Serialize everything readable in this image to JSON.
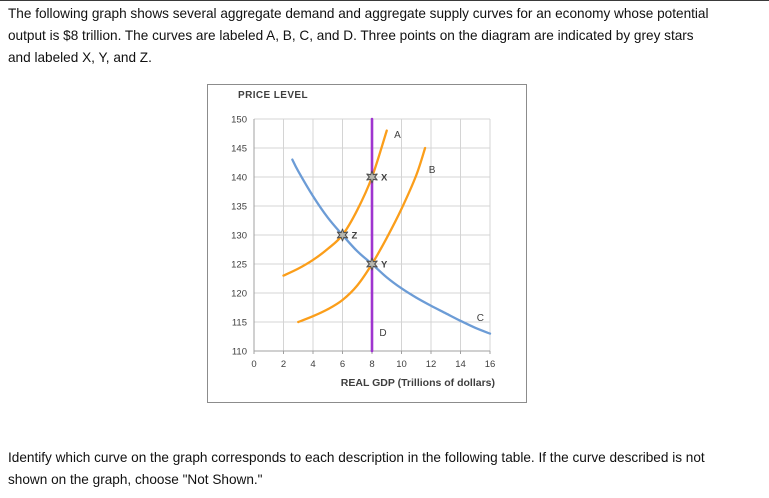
{
  "page": {
    "intro_lines": [
      "The following graph shows several aggregate demand and aggregate supply curves for an economy whose potential",
      "output is $8 trillion. The curves are labeled A, B, C, and D. Three points on the diagram are indicated by grey stars",
      "and labeled X, Y, and Z."
    ],
    "footer_lines": [
      "Identify which curve on the graph corresponds to each description in the following table. If the curve described is not",
      "shown on the graph, choose \"Not Shown.\""
    ]
  },
  "chart_data": {
    "type": "line",
    "title": "PRICE LEVEL",
    "xlabel": "REAL GDP (Trillions of dollars)",
    "ylabel": "PRICE LEVEL",
    "xlim": [
      0,
      16
    ],
    "ylim": [
      110,
      150
    ],
    "xticks": [
      0,
      2,
      4,
      6,
      8,
      10,
      12,
      14,
      16
    ],
    "yticks": [
      110,
      115,
      120,
      125,
      130,
      135,
      140,
      145,
      150
    ],
    "grid": true,
    "potential_output_trillions": 8,
    "colors": {
      "aggregate_supply": "#FB9E1A",
      "aggregate_demand": "#6C9CD6",
      "potential_output": "#9F35CF",
      "gridline": "#d4d4d4",
      "axis": "#a0a0a0",
      "star_fill": "#b5b5ad",
      "star_stroke": "#4f4f4f"
    },
    "series": [
      {
        "name": "A",
        "kind": "aggregate-supply",
        "color": "#FB9E1A",
        "points": [
          [
            2,
            123
          ],
          [
            3,
            124.2
          ],
          [
            4,
            125.7
          ],
          [
            5,
            127.6
          ],
          [
            6,
            130
          ],
          [
            7,
            134.3
          ],
          [
            8,
            140
          ],
          [
            9,
            148
          ]
        ],
        "label_pos": [
          9.5,
          147.3
        ]
      },
      {
        "name": "B",
        "kind": "aggregate-supply",
        "color": "#FB9E1A",
        "points": [
          [
            3,
            115
          ],
          [
            4,
            116
          ],
          [
            5,
            117.2
          ],
          [
            6,
            118.8
          ],
          [
            7,
            121.3
          ],
          [
            8,
            125
          ],
          [
            9,
            129.5
          ],
          [
            10,
            134.5
          ],
          [
            11,
            140.3
          ],
          [
            11.6,
            145
          ]
        ],
        "label_pos": [
          11.85,
          141.3
        ]
      },
      {
        "name": "C",
        "kind": "aggregate-demand",
        "color": "#6C9CD6",
        "points": [
          [
            2.6,
            143
          ],
          [
            3,
            141
          ],
          [
            4,
            136.7
          ],
          [
            5,
            133
          ],
          [
            6,
            130
          ],
          [
            7,
            127.2
          ],
          [
            8,
            125
          ],
          [
            9,
            122.7
          ],
          [
            10,
            120.8
          ],
          [
            11,
            119.2
          ],
          [
            12,
            117.8
          ],
          [
            13,
            116.5
          ],
          [
            14,
            115.2
          ],
          [
            15,
            114
          ],
          [
            16,
            113
          ]
        ],
        "label_pos": [
          15.1,
          115.8
        ]
      },
      {
        "name": "D",
        "kind": "potential-output",
        "color": "#9F35CF",
        "points": [
          [
            8,
            110
          ],
          [
            8,
            150
          ]
        ],
        "label_pos": [
          8.5,
          113.2
        ]
      }
    ],
    "stars": [
      {
        "name": "X",
        "x": 8,
        "y": 140
      },
      {
        "name": "Y",
        "x": 8,
        "y": 125
      },
      {
        "name": "Z",
        "x": 6,
        "y": 130
      }
    ]
  }
}
